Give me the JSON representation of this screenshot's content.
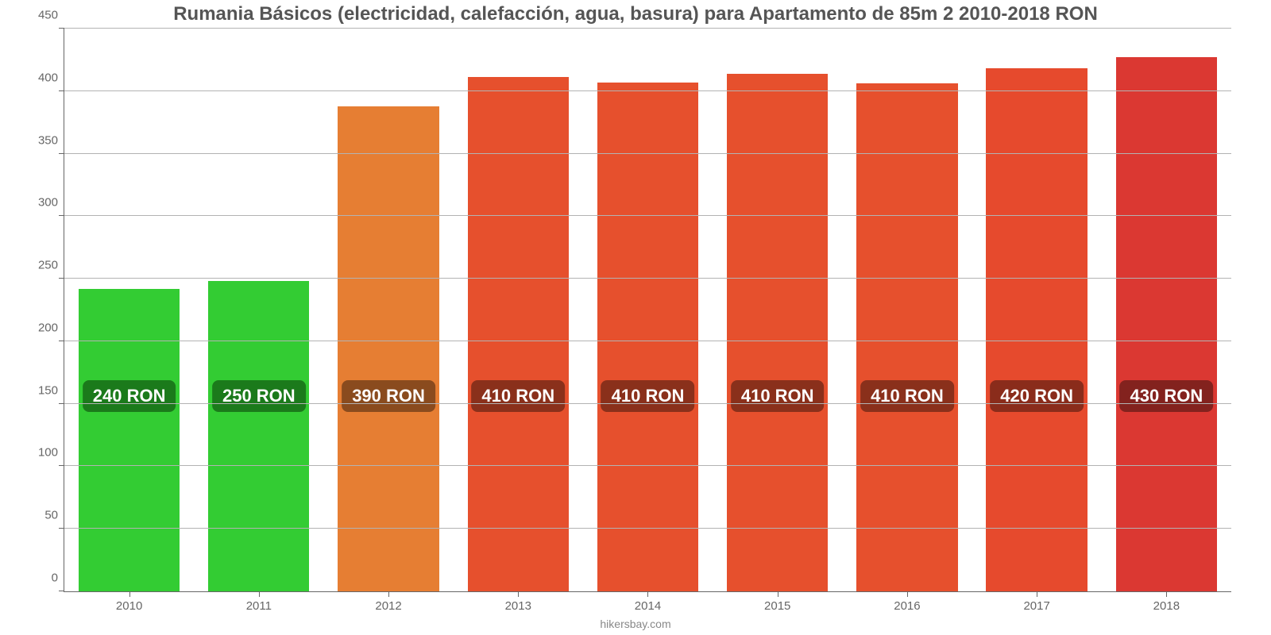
{
  "chart": {
    "type": "bar",
    "title": "Rumania Básicos (electricidad, calefacción, agua, basura) para Apartamento de 85m 2 2010-2018 RON",
    "title_fontsize": 24,
    "title_color": "#555555",
    "footer": "hikersbay.com",
    "footer_fontsize": 14,
    "footer_color": "#888888",
    "background_color": "#ffffff",
    "grid_color": "#b3b3b3",
    "axis_color": "#666666",
    "ylim": [
      0,
      450
    ],
    "ytick_step": 50,
    "tick_fontsize": 15,
    "value_label_fontsize": 22,
    "bar_width": 0.78,
    "categories": [
      "2010",
      "2011",
      "2012",
      "2013",
      "2014",
      "2015",
      "2016",
      "2017",
      "2018"
    ],
    "values": [
      242,
      248,
      388,
      411,
      407,
      414,
      406,
      418,
      427
    ],
    "value_labels": [
      "240 RON",
      "250 RON",
      "390 RON",
      "410 RON",
      "410 RON",
      "410 RON",
      "410 RON",
      "420 RON",
      "430 RON"
    ],
    "bar_colors": [
      "#33cc33",
      "#33cc33",
      "#e67e33",
      "#e6502d",
      "#e6502d",
      "#e6502d",
      "#e6502d",
      "#e64a2d",
      "#db3832"
    ],
    "label_bg_colors": [
      "#1b7a1b",
      "#1b7a1b",
      "#8a4b1e",
      "#8a301b",
      "#8a301b",
      "#8a301b",
      "#8a301b",
      "#8a2c1b",
      "#83221e"
    ],
    "label_center_value": 155
  }
}
